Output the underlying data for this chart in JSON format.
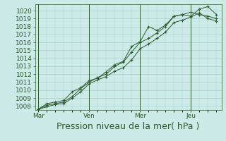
{
  "background_color": "#cceae8",
  "grid_color": "#a8cece",
  "line_color": "#2d5a2d",
  "marker_color": "#2d5a2d",
  "xlabel": "Pression niveau de la mer( hPa )",
  "xlabel_fontsize": 9,
  "tick_fontsize": 6.5,
  "ylim": [
    1007.5,
    1020.8
  ],
  "yticks": [
    1008,
    1009,
    1010,
    1011,
    1012,
    1013,
    1014,
    1015,
    1016,
    1017,
    1018,
    1019,
    1020
  ],
  "day_labels": [
    "Mar",
    "Ven",
    "Mer",
    "Jeu"
  ],
  "day_positions": [
    0,
    3,
    6,
    9
  ],
  "xlim": [
    -0.2,
    10.8
  ],
  "series1_x": [
    0.0,
    0.5,
    1.0,
    1.5,
    2.0,
    2.5,
    3.0,
    3.5,
    4.0,
    4.5,
    5.0,
    5.5,
    6.0,
    6.5,
    7.0,
    7.5,
    8.0,
    8.5,
    9.0,
    9.5,
    10.0,
    10.5
  ],
  "series1_y": [
    1007.6,
    1008.1,
    1008.3,
    1008.5,
    1009.2,
    1010.2,
    1011.0,
    1011.6,
    1012.0,
    1013.0,
    1013.5,
    1014.8,
    1016.0,
    1016.5,
    1017.2,
    1018.0,
    1019.3,
    1019.5,
    1019.3,
    1020.2,
    1020.5,
    1019.5
  ],
  "series2_x": [
    0.0,
    0.5,
    1.0,
    1.5,
    2.0,
    2.5,
    3.0,
    3.5,
    4.0,
    4.5,
    5.0,
    5.5,
    6.0,
    6.5,
    7.0,
    7.5,
    8.0,
    8.5,
    9.0,
    9.5,
    10.0,
    10.5
  ],
  "series2_y": [
    1007.6,
    1008.3,
    1008.5,
    1008.7,
    1009.8,
    1010.3,
    1011.2,
    1011.5,
    1012.3,
    1013.2,
    1013.6,
    1015.5,
    1016.1,
    1018.0,
    1017.5,
    1018.2,
    1019.3,
    1019.5,
    1019.8,
    1019.5,
    1019.3,
    1019.0
  ],
  "series3_x": [
    0.0,
    0.5,
    1.0,
    1.5,
    2.0,
    2.5,
    3.0,
    3.5,
    4.0,
    4.5,
    5.0,
    5.5,
    6.0,
    6.5,
    7.0,
    7.5,
    8.0,
    8.5,
    9.0,
    9.5,
    10.0,
    10.5
  ],
  "series3_y": [
    1007.6,
    1007.9,
    1008.2,
    1008.3,
    1009.0,
    1009.8,
    1010.8,
    1011.3,
    1011.7,
    1012.4,
    1012.8,
    1013.8,
    1015.2,
    1015.8,
    1016.5,
    1017.3,
    1018.5,
    1018.8,
    1019.2,
    1019.7,
    1019.0,
    1018.7
  ]
}
